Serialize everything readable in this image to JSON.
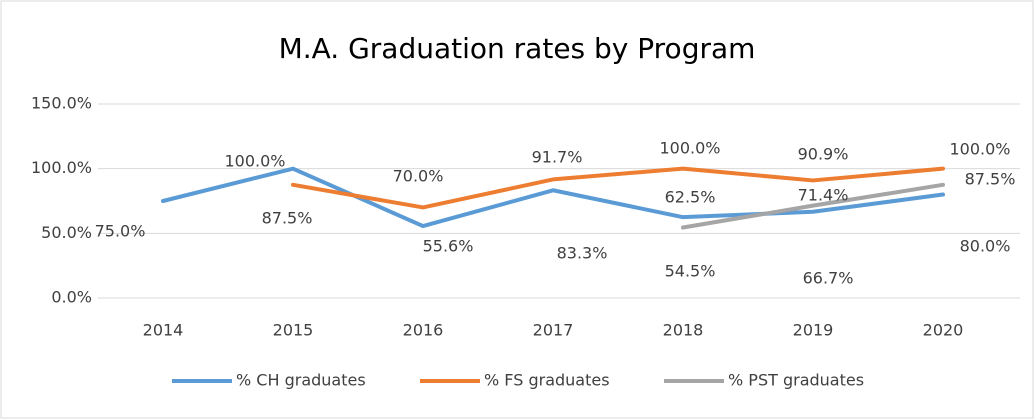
{
  "chart_data": {
    "type": "line",
    "title": "M.A. Graduation rates by Program",
    "categories": [
      "2014",
      "2015",
      "2016",
      "2017",
      "2018",
      "2019",
      "2020"
    ],
    "series": [
      {
        "name": "% CH graduates",
        "color": "#5b9bd5",
        "values": [
          75.0,
          100.0,
          55.6,
          83.3,
          62.5,
          66.7,
          80.0
        ],
        "value_labels": [
          "75.0%",
          "100.0%",
          "55.6%",
          "83.3%",
          "62.5%",
          "66.7%",
          "80.0%"
        ]
      },
      {
        "name": "% FS graduates",
        "color": "#ed7d31",
        "values": [
          null,
          87.5,
          70.0,
          91.7,
          100.0,
          90.9,
          100.0
        ],
        "value_labels": [
          null,
          "87.5%",
          "70.0%",
          "91.7%",
          "100.0%",
          "90.9%",
          "100.0%"
        ]
      },
      {
        "name": "% PST graduates",
        "color": "#a5a5a5",
        "values": [
          null,
          null,
          null,
          null,
          54.5,
          71.4,
          87.5
        ],
        "value_labels": [
          null,
          null,
          null,
          null,
          "54.5%",
          "71.4%",
          "87.5%"
        ]
      }
    ],
    "ylim": [
      0,
      150
    ],
    "yticks": [
      {
        "value": 0,
        "label": "0.0%"
      },
      {
        "value": 50,
        "label": "50.0%"
      },
      {
        "value": 100,
        "label": "100.0%"
      },
      {
        "value": 150,
        "label": "150.0%"
      }
    ],
    "grid": true,
    "legend": "bottom"
  }
}
